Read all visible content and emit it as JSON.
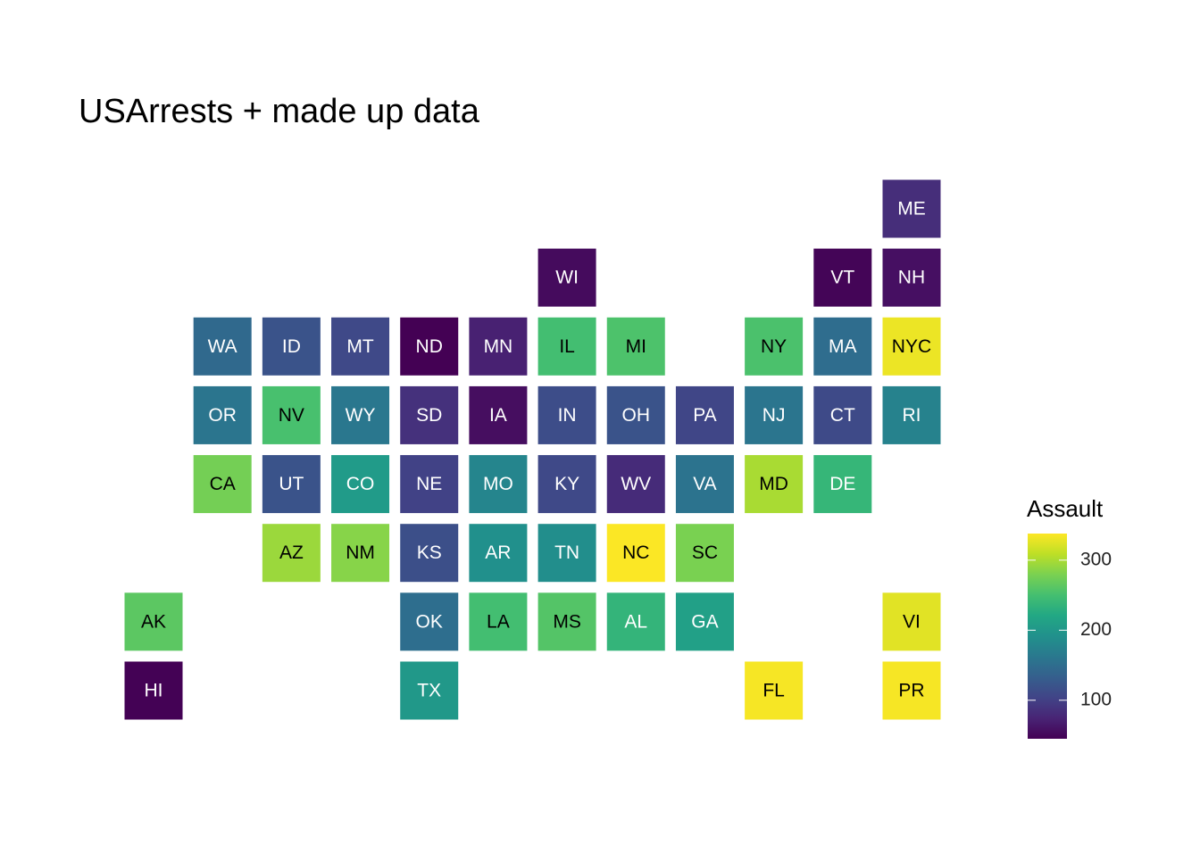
{
  "chart_data": {
    "type": "tile-map",
    "title": "USArrests + made up data",
    "legend_title": "Assault",
    "colormap": "viridis",
    "categories": [
      "ME",
      "WI",
      "VT",
      "NH",
      "WA",
      "ID",
      "MT",
      "ND",
      "MN",
      "IL",
      "MI",
      "NY",
      "MA",
      "NYC",
      "OR",
      "NV",
      "WY",
      "SD",
      "IA",
      "IN",
      "OH",
      "PA",
      "NJ",
      "CT",
      "RI",
      "CA",
      "UT",
      "CO",
      "NE",
      "MO",
      "KY",
      "WV",
      "VA",
      "MD",
      "DE",
      "AZ",
      "NM",
      "KS",
      "AR",
      "TN",
      "NC",
      "SC",
      "AK",
      "OK",
      "LA",
      "MS",
      "AL",
      "GA",
      "VI",
      "HI",
      "TX",
      "FL",
      "PR"
    ],
    "col": [
      12,
      7,
      11,
      12,
      2,
      3,
      4,
      5,
      6,
      7,
      8,
      10,
      11,
      12,
      2,
      3,
      4,
      5,
      6,
      7,
      8,
      9,
      10,
      11,
      12,
      2,
      3,
      4,
      5,
      6,
      7,
      8,
      9,
      10,
      11,
      3,
      4,
      5,
      6,
      7,
      8,
      9,
      1,
      5,
      6,
      7,
      8,
      9,
      12,
      1,
      5,
      10,
      12
    ],
    "row": [
      1,
      2,
      2,
      2,
      3,
      3,
      3,
      3,
      3,
      3,
      3,
      3,
      3,
      3,
      4,
      4,
      4,
      4,
      4,
      4,
      4,
      4,
      4,
      4,
      4,
      5,
      5,
      5,
      5,
      5,
      5,
      5,
      5,
      5,
      5,
      6,
      6,
      6,
      6,
      6,
      6,
      6,
      7,
      7,
      7,
      7,
      7,
      7,
      7,
      8,
      8,
      8,
      8
    ],
    "values": [
      83,
      53,
      48,
      57,
      145,
      120,
      109,
      45,
      72,
      249,
      255,
      254,
      149,
      330,
      159,
      252,
      161,
      86,
      56,
      113,
      120,
      106,
      159,
      110,
      174,
      276,
      120,
      204,
      102,
      178,
      109,
      81,
      156,
      300,
      238,
      294,
      285,
      115,
      190,
      188,
      337,
      279,
      263,
      151,
      249,
      259,
      236,
      211,
      325,
      46,
      201,
      335,
      335
    ],
    "colorlim": [
      45,
      338
    ],
    "colorticks": [
      100,
      200,
      300
    ]
  }
}
